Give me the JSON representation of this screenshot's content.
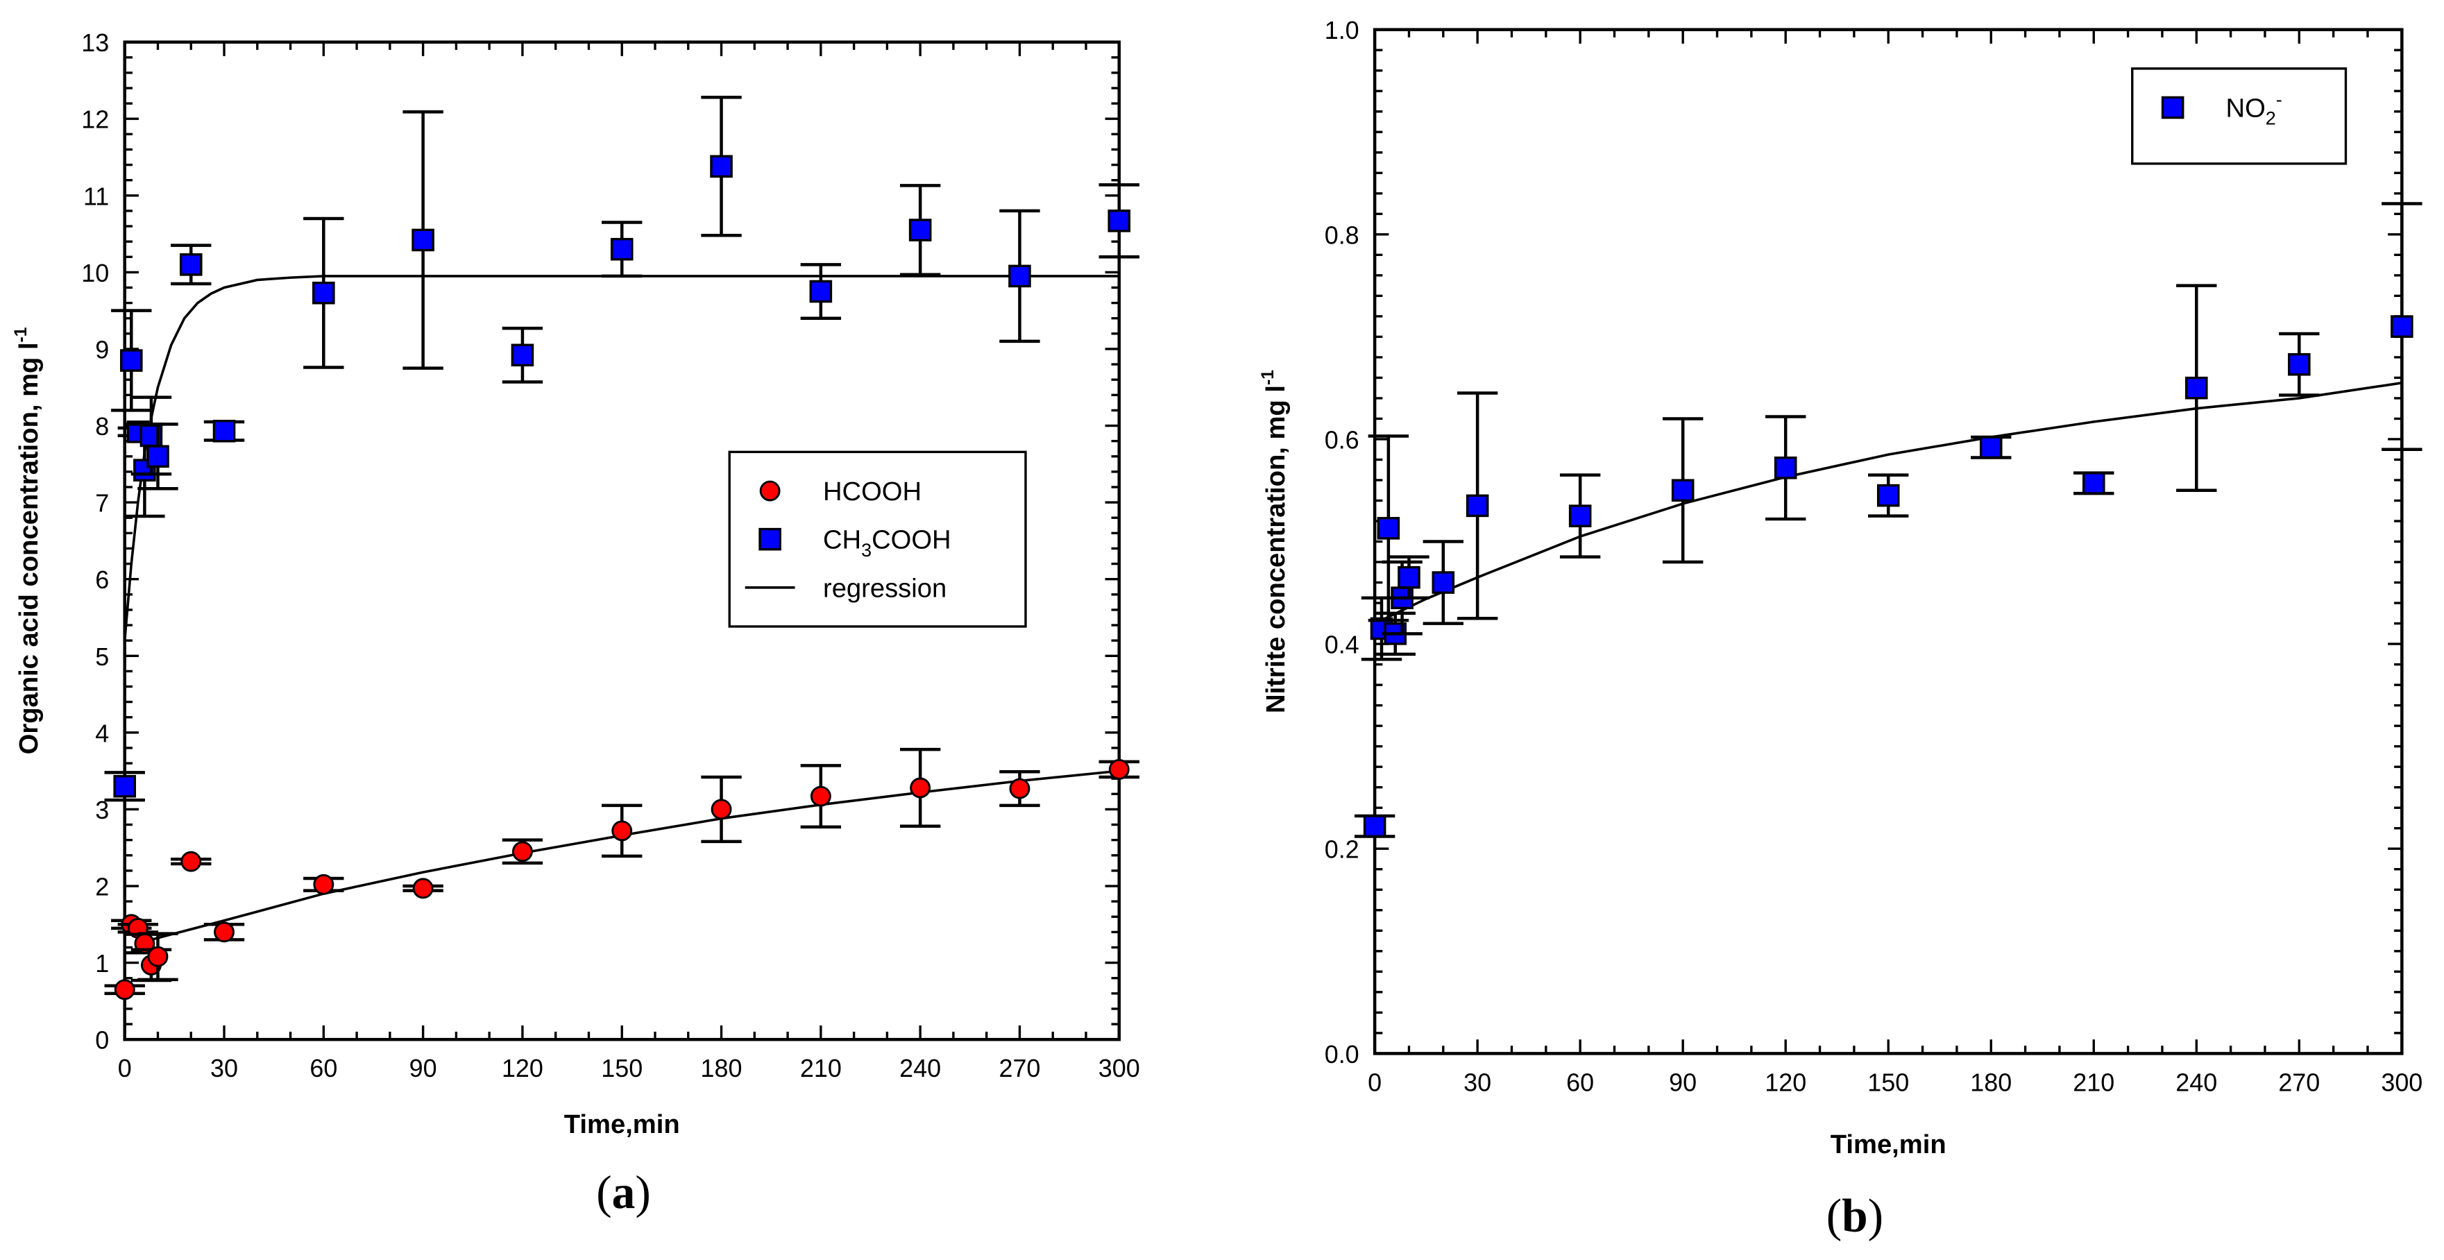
{
  "colors": {
    "hcooh": "#ff0000",
    "ch3cooh": "#0000ff",
    "no2": "#0000ff",
    "regression": "#000000"
  },
  "chart_data": [
    {
      "type": "scatter",
      "caption_open": "(",
      "caption_letter": "a",
      "caption_close": ")",
      "xlabel": "Time,min",
      "ylabel_main": "Organic acid concentration, mg l",
      "ylabel_sup": "-1",
      "xlim": [
        0,
        300
      ],
      "ylim": [
        0,
        13
      ],
      "xticks": [
        0,
        30,
        60,
        90,
        120,
        150,
        180,
        210,
        240,
        270,
        300
      ],
      "yticks": [
        0,
        1,
        2,
        3,
        4,
        5,
        6,
        7,
        8,
        9,
        10,
        11,
        12,
        13
      ],
      "grid": false,
      "legend_position": "center-right",
      "legend": [
        {
          "marker": "circle",
          "parts": [
            "HCOOH"
          ]
        },
        {
          "marker": "square",
          "parts": [
            "CH",
            "3",
            "COOH"
          ]
        },
        {
          "marker": "line",
          "parts": [
            "regression"
          ]
        }
      ],
      "series": [
        {
          "name": "HCOOH",
          "marker": "circle",
          "x": [
            0,
            2,
            4,
            6,
            8,
            10,
            20,
            30,
            60,
            90,
            120,
            150,
            180,
            210,
            240,
            270,
            300
          ],
          "y": [
            0.65,
            1.5,
            1.45,
            1.25,
            0.97,
            1.08,
            2.32,
            1.4,
            2.02,
            1.97,
            2.45,
            2.72,
            3.0,
            3.17,
            3.28,
            3.27,
            3.52
          ],
          "err": [
            0.05,
            0.05,
            0.05,
            0.12,
            0.2,
            0.3,
            0.03,
            0.1,
            0.08,
            0.03,
            0.15,
            0.33,
            0.42,
            0.4,
            0.5,
            0.22,
            0.1
          ]
        },
        {
          "name": "CH3COOH",
          "marker": "square",
          "x": [
            0,
            2,
            4,
            6,
            8,
            10,
            20,
            30,
            60,
            90,
            120,
            150,
            180,
            210,
            240,
            270,
            300
          ],
          "y": [
            3.3,
            8.85,
            7.92,
            7.42,
            7.87,
            7.6,
            10.1,
            7.93,
            9.73,
            10.42,
            8.92,
            10.3,
            11.38,
            9.75,
            10.55,
            9.95,
            10.67
          ],
          "err": [
            0.18,
            0.65,
            0.05,
            0.6,
            0.5,
            0.42,
            0.25,
            0.12,
            0.97,
            1.67,
            0.35,
            0.35,
            0.9,
            0.35,
            0.58,
            0.85,
            0.47
          ]
        }
      ],
      "regression": [
        {
          "x": [
            0,
            2,
            4,
            6,
            8,
            10,
            14,
            18,
            22,
            26,
            30,
            40,
            50,
            60,
            100,
            150,
            200,
            250,
            300
          ],
          "y": [
            5.2,
            6.2,
            7.0,
            7.65,
            8.1,
            8.5,
            9.05,
            9.4,
            9.6,
            9.72,
            9.8,
            9.9,
            9.93,
            9.95,
            9.95,
            9.95,
            9.95,
            9.95,
            9.95
          ]
        },
        {
          "x": [
            8,
            15,
            30,
            60,
            90,
            120,
            150,
            180,
            210,
            240,
            270,
            300
          ],
          "y": [
            1.3,
            1.38,
            1.55,
            1.9,
            2.18,
            2.43,
            2.66,
            2.88,
            3.06,
            3.22,
            3.37,
            3.5
          ]
        }
      ]
    },
    {
      "type": "scatter",
      "caption_open": "(",
      "caption_letter": "b",
      "caption_close": ")",
      "xlabel": "Time,min",
      "ylabel_main": "Nitrite concentration, mg l",
      "ylabel_sup": "-1",
      "xlim": [
        0,
        300
      ],
      "ylim": [
        0,
        1.0
      ],
      "xticks": [
        0,
        30,
        60,
        90,
        120,
        150,
        180,
        210,
        240,
        270,
        300
      ],
      "yticks": [
        "0.0",
        "0.2",
        "0.4",
        "0.6",
        "0.8",
        "1.0"
      ],
      "grid": false,
      "legend_position": "top-right",
      "legend": [
        {
          "marker": "square",
          "parts": [
            "NO",
            "2",
            "-"
          ]
        }
      ],
      "series": [
        {
          "name": "NO2-",
          "marker": "square",
          "x": [
            0,
            2,
            4,
            6,
            8,
            10,
            20,
            30,
            60,
            90,
            120,
            150,
            180,
            210,
            240,
            270,
            300
          ],
          "y": [
            0.222,
            0.415,
            0.513,
            0.41,
            0.445,
            0.465,
            0.46,
            0.535,
            0.525,
            0.55,
            0.572,
            0.545,
            0.592,
            0.557,
            0.65,
            0.673,
            0.71
          ],
          "err": [
            0.01,
            0.03,
            0.09,
            0.02,
            0.035,
            0.02,
            0.04,
            0.11,
            0.04,
            0.07,
            0.05,
            0.02,
            0.01,
            0.01,
            0.1,
            0.03,
            0.12
          ]
        }
      ],
      "regression": [
        {
          "x": [
            0,
            15,
            30,
            60,
            90,
            120,
            150,
            180,
            210,
            240,
            270,
            300
          ],
          "y": [
            0.42,
            0.444,
            0.465,
            0.505,
            0.537,
            0.563,
            0.585,
            0.602,
            0.617,
            0.63,
            0.64,
            0.655
          ]
        }
      ]
    }
  ]
}
